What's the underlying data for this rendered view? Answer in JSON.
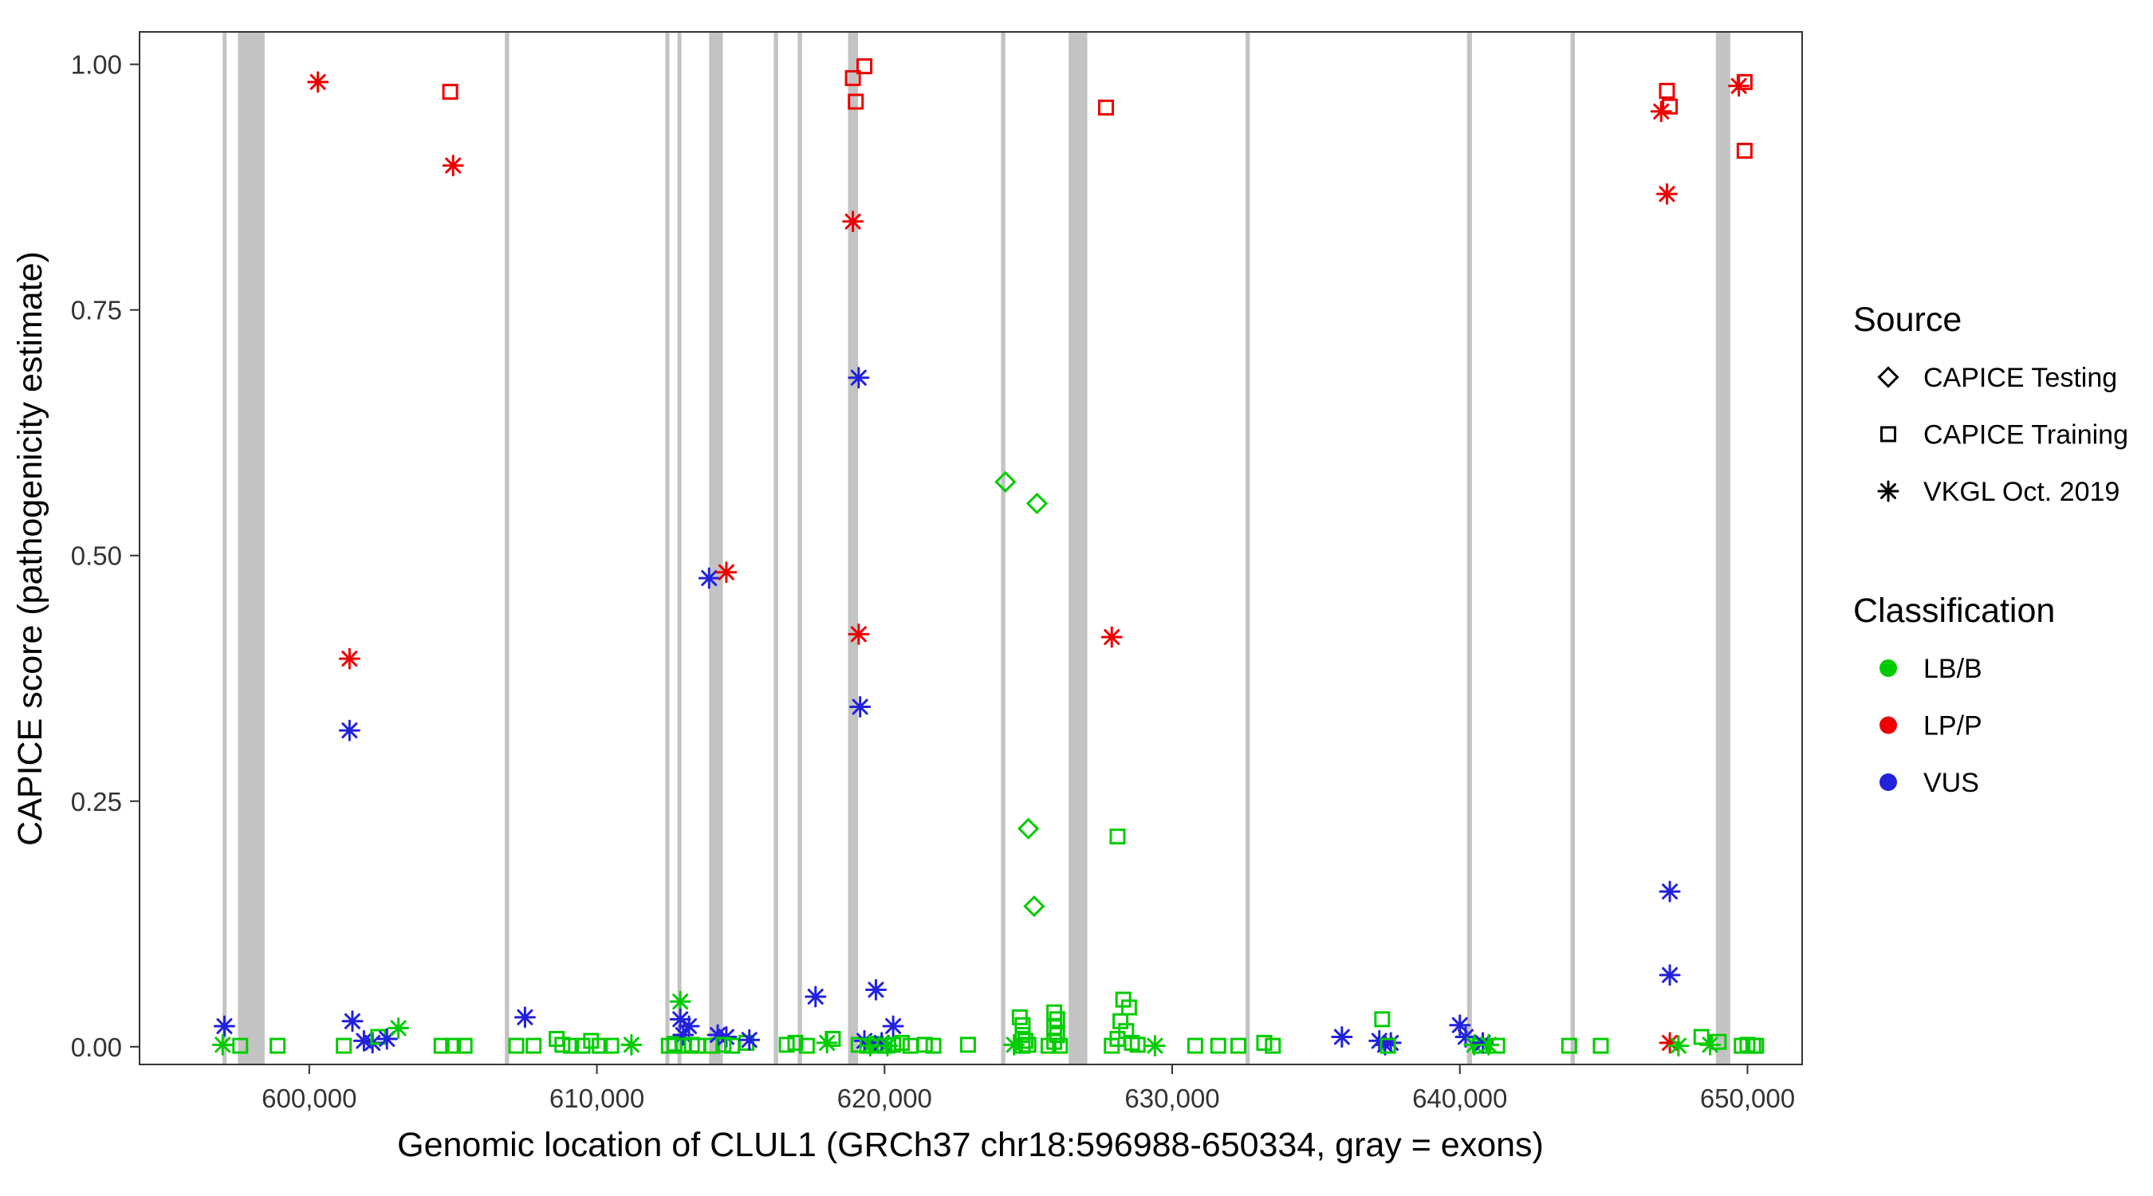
{
  "legend": {
    "source_title": "Source",
    "source_items": [
      {
        "label": "CAPICE Testing",
        "shape": "diamond"
      },
      {
        "label": "CAPICE Training",
        "shape": "square"
      },
      {
        "label": "VKGL Oct. 2019",
        "shape": "asterisk"
      }
    ],
    "classification_title": "Classification",
    "classification_items": [
      {
        "label": "LB/B",
        "color": "#00CC00"
      },
      {
        "label": "LP/P",
        "color": "#EE0000"
      },
      {
        "label": "VUS",
        "color": "#2121DE"
      }
    ]
  },
  "style": {
    "class_colors": {
      "LB/B": "#00CC00",
      "LP/P": "#EE0000",
      "VUS": "#2121DE"
    },
    "exon_color": "#C3C3C3",
    "axis_color": "#333333",
    "legend_shape_color": "#000000",
    "background": "#FFFFFF"
  },
  "chart_data": {
    "type": "scatter",
    "title": "",
    "xlabel": "Genomic location of CLUL1 (GRCh37 chr18:596988-650334, gray = exons)",
    "ylabel": "CAPICE score (pathogenicity estimate)",
    "xlim": [
      594100,
      651900
    ],
    "ylim": [
      -0.018,
      1.033
    ],
    "x_ticks": [
      600000,
      610000,
      620000,
      630000,
      640000,
      650000
    ],
    "x_tick_labels": [
      "600,000",
      "610,000",
      "620,000",
      "630,000",
      "640,000",
      "650,000"
    ],
    "y_ticks": [
      0,
      0.25,
      0.5,
      0.75,
      1
    ],
    "y_tick_labels": [
      "0.00",
      "0.25",
      "0.50",
      "0.75",
      "1.00"
    ],
    "grid": false,
    "legend_position": "right",
    "exons_note": "gray vertical bands = exons, [start,end] genomic coords",
    "exons": [
      [
        596988,
        597100
      ],
      [
        597520,
        598450
      ],
      [
        606800,
        606950
      ],
      [
        612380,
        612520
      ],
      [
        612800,
        612930
      ],
      [
        613900,
        614380
      ],
      [
        616150,
        616300
      ],
      [
        616980,
        617130
      ],
      [
        618730,
        619080
      ],
      [
        624050,
        624200
      ],
      [
        626400,
        627050
      ],
      [
        632550,
        632700
      ],
      [
        640250,
        640420
      ],
      [
        643850,
        644000
      ],
      [
        648900,
        649400
      ]
    ],
    "point_fields": [
      "x",
      "y",
      "classification",
      "source"
    ],
    "points": [
      [
        600300,
        0.982,
        "LP/P",
        "vkgl"
      ],
      [
        604900,
        0.972,
        "LP/P",
        "training"
      ],
      [
        605000,
        0.897,
        "LP/P",
        "vkgl"
      ],
      [
        601400,
        0.395,
        "LP/P",
        "vkgl"
      ],
      [
        601400,
        0.322,
        "VUS",
        "vkgl"
      ],
      [
        613900,
        0.477,
        "VUS",
        "vkgl"
      ],
      [
        614500,
        0.483,
        "LP/P",
        "vkgl"
      ],
      [
        618900,
        0.986,
        "LP/P",
        "training"
      ],
      [
        619300,
        0.998,
        "LP/P",
        "training"
      ],
      [
        619000,
        0.962,
        "LP/P",
        "training"
      ],
      [
        618900,
        0.84,
        "LP/P",
        "vkgl"
      ],
      [
        619100,
        0.681,
        "VUS",
        "vkgl"
      ],
      [
        619100,
        0.42,
        "LP/P",
        "vkgl"
      ],
      [
        619150,
        0.346,
        "VUS",
        "vkgl"
      ],
      [
        624200,
        0.575,
        "LB/B",
        "testing"
      ],
      [
        625300,
        0.553,
        "LB/B",
        "testing"
      ],
      [
        625000,
        0.222,
        "LB/B",
        "testing"
      ],
      [
        625200,
        0.143,
        "LB/B",
        "testing"
      ],
      [
        627700,
        0.956,
        "LP/P",
        "training"
      ],
      [
        627900,
        0.417,
        "LP/P",
        "vkgl"
      ],
      [
        628100,
        0.214,
        "LB/B",
        "training"
      ],
      [
        647200,
        0.973,
        "LP/P",
        "training"
      ],
      [
        647300,
        0.957,
        "LP/P",
        "training"
      ],
      [
        647000,
        0.952,
        "LP/P",
        "vkgl"
      ],
      [
        647200,
        0.868,
        "LP/P",
        "vkgl"
      ],
      [
        647300,
        0.158,
        "VUS",
        "vkgl"
      ],
      [
        647300,
        0.073,
        "VUS",
        "vkgl"
      ],
      [
        649700,
        0.978,
        "LP/P",
        "vkgl"
      ],
      [
        649900,
        0.982,
        "LP/P",
        "training"
      ],
      [
        649900,
        0.912,
        "LP/P",
        "training"
      ],
      [
        597050,
        0.021,
        "VUS",
        "vkgl"
      ],
      [
        596990,
        0.002,
        "LB/B",
        "vkgl"
      ],
      [
        597600,
        0.001,
        "LB/B",
        "training"
      ],
      [
        598900,
        0.001,
        "LB/B",
        "training"
      ],
      [
        601200,
        0.001,
        "LB/B",
        "training"
      ],
      [
        601500,
        0.026,
        "VUS",
        "vkgl"
      ],
      [
        601900,
        0.006,
        "VUS",
        "vkgl"
      ],
      [
        602200,
        0.004,
        "VUS",
        "vkgl"
      ],
      [
        602400,
        0.01,
        "LB/B",
        "training"
      ],
      [
        602700,
        0.008,
        "VUS",
        "vkgl"
      ],
      [
        603100,
        0.019,
        "LB/B",
        "vkgl"
      ],
      [
        604600,
        0.001,
        "LB/B",
        "training"
      ],
      [
        605000,
        0.001,
        "LB/B",
        "training"
      ],
      [
        605400,
        0.001,
        "LB/B",
        "training"
      ],
      [
        607200,
        0.001,
        "LB/B",
        "training"
      ],
      [
        607500,
        0.03,
        "VUS",
        "vkgl"
      ],
      [
        607800,
        0.001,
        "LB/B",
        "training"
      ],
      [
        608600,
        0.008,
        "LB/B",
        "training"
      ],
      [
        608800,
        0.002,
        "LB/B",
        "training"
      ],
      [
        609100,
        0.001,
        "LB/B",
        "training"
      ],
      [
        609500,
        0.001,
        "LB/B",
        "training"
      ],
      [
        609800,
        0.006,
        "LB/B",
        "training"
      ],
      [
        610100,
        0.001,
        "LB/B",
        "training"
      ],
      [
        610500,
        0.001,
        "LB/B",
        "training"
      ],
      [
        611200,
        0.002,
        "LB/B",
        "vkgl"
      ],
      [
        612500,
        0.001,
        "LB/B",
        "training"
      ],
      [
        612700,
        0.003,
        "LB/B",
        "training"
      ],
      [
        612900,
        0.046,
        "LB/B",
        "vkgl"
      ],
      [
        612900,
        0.028,
        "VUS",
        "vkgl"
      ],
      [
        613000,
        0.012,
        "VUS",
        "vkgl"
      ],
      [
        613200,
        0.021,
        "VUS",
        "vkgl"
      ],
      [
        613000,
        0.001,
        "LB/B",
        "training"
      ],
      [
        613300,
        0.002,
        "LB/B",
        "training"
      ],
      [
        613500,
        0.001,
        "LB/B",
        "training"
      ],
      [
        614000,
        0.001,
        "LB/B",
        "training"
      ],
      [
        614200,
        0.012,
        "VUS",
        "vkgl"
      ],
      [
        614500,
        0.01,
        "VUS",
        "vkgl"
      ],
      [
        614400,
        0.002,
        "LB/B",
        "training"
      ],
      [
        614700,
        0.001,
        "LB/B",
        "training"
      ],
      [
        615200,
        0.004,
        "LB/B",
        "training"
      ],
      [
        615300,
        0.007,
        "VUS",
        "vkgl"
      ],
      [
        616600,
        0.002,
        "LB/B",
        "training"
      ],
      [
        616900,
        0.004,
        "LB/B",
        "training"
      ],
      [
        617300,
        0.001,
        "LB/B",
        "training"
      ],
      [
        617600,
        0.051,
        "VUS",
        "vkgl"
      ],
      [
        618000,
        0.004,
        "LB/B",
        "vkgl"
      ],
      [
        618200,
        0.008,
        "LB/B",
        "training"
      ],
      [
        619100,
        0.002,
        "LB/B",
        "training"
      ],
      [
        619300,
        0.006,
        "VUS",
        "vkgl"
      ],
      [
        619400,
        0.001,
        "LB/B",
        "training"
      ],
      [
        619500,
        0.001,
        "LB/B",
        "vkgl"
      ],
      [
        619700,
        0.058,
        "VUS",
        "vkgl"
      ],
      [
        619700,
        0.003,
        "LB/B",
        "training"
      ],
      [
        619900,
        0.004,
        "VUS",
        "vkgl"
      ],
      [
        620000,
        0.001,
        "LB/B",
        "training"
      ],
      [
        620100,
        0.001,
        "LB/B",
        "vkgl"
      ],
      [
        620300,
        0.021,
        "VUS",
        "vkgl"
      ],
      [
        620300,
        0.002,
        "LB/B",
        "training"
      ],
      [
        620600,
        0.004,
        "LB/B",
        "training"
      ],
      [
        620900,
        0.001,
        "LB/B",
        "training"
      ],
      [
        621400,
        0.002,
        "LB/B",
        "training"
      ],
      [
        621700,
        0.001,
        "LB/B",
        "training"
      ],
      [
        622900,
        0.002,
        "LB/B",
        "training"
      ],
      [
        624500,
        0.002,
        "LB/B",
        "vkgl"
      ],
      [
        624700,
        0.03,
        "LB/B",
        "training"
      ],
      [
        624800,
        0.022,
        "LB/B",
        "training"
      ],
      [
        624800,
        0.012,
        "LB/B",
        "training"
      ],
      [
        624900,
        0.006,
        "LB/B",
        "training"
      ],
      [
        624800,
        0.001,
        "LB/B",
        "training"
      ],
      [
        625000,
        0.002,
        "LB/B",
        "training"
      ],
      [
        625700,
        0.001,
        "LB/B",
        "training"
      ],
      [
        625900,
        0.035,
        "LB/B",
        "training"
      ],
      [
        626000,
        0.028,
        "LB/B",
        "training"
      ],
      [
        625900,
        0.02,
        "LB/B",
        "training"
      ],
      [
        626000,
        0.012,
        "LB/B",
        "training"
      ],
      [
        625900,
        0.005,
        "LB/B",
        "training"
      ],
      [
        626100,
        0.001,
        "LB/B",
        "training"
      ],
      [
        627900,
        0.001,
        "LB/B",
        "training"
      ],
      [
        628100,
        0.008,
        "LB/B",
        "training"
      ],
      [
        628200,
        0.026,
        "LB/B",
        "training"
      ],
      [
        628300,
        0.048,
        "LB/B",
        "training"
      ],
      [
        628400,
        0.016,
        "LB/B",
        "training"
      ],
      [
        628500,
        0.04,
        "LB/B",
        "training"
      ],
      [
        628600,
        0.004,
        "LB/B",
        "training"
      ],
      [
        628800,
        0.002,
        "LB/B",
        "training"
      ],
      [
        629400,
        0.001,
        "LB/B",
        "vkgl"
      ],
      [
        630800,
        0.001,
        "LB/B",
        "training"
      ],
      [
        631600,
        0.001,
        "LB/B",
        "training"
      ],
      [
        632300,
        0.001,
        "LB/B",
        "training"
      ],
      [
        633200,
        0.004,
        "LB/B",
        "training"
      ],
      [
        633500,
        0.001,
        "LB/B",
        "training"
      ],
      [
        635900,
        0.01,
        "VUS",
        "vkgl"
      ],
      [
        637200,
        0.006,
        "VUS",
        "vkgl"
      ],
      [
        637400,
        0.002,
        "VUS",
        "vkgl"
      ],
      [
        637600,
        0.004,
        "VUS",
        "vkgl"
      ],
      [
        637300,
        0.028,
        "LB/B",
        "training"
      ],
      [
        637500,
        0.001,
        "LB/B",
        "training"
      ],
      [
        640000,
        0.022,
        "VUS",
        "vkgl"
      ],
      [
        640200,
        0.01,
        "VUS",
        "vkgl"
      ],
      [
        640500,
        0.002,
        "LB/B",
        "vkgl"
      ],
      [
        640700,
        0.001,
        "LB/B",
        "training"
      ],
      [
        640800,
        0.004,
        "VUS",
        "vkgl"
      ],
      [
        641000,
        0.002,
        "LB/B",
        "vkgl"
      ],
      [
        641300,
        0.001,
        "LB/B",
        "training"
      ],
      [
        643800,
        0.001,
        "LB/B",
        "training"
      ],
      [
        644900,
        0.001,
        "LB/B",
        "training"
      ],
      [
        647300,
        0.004,
        "LP/P",
        "vkgl"
      ],
      [
        647600,
        0.001,
        "LB/B",
        "vkgl"
      ],
      [
        648400,
        0.01,
        "LB/B",
        "training"
      ],
      [
        648700,
        0.002,
        "LB/B",
        "vkgl"
      ],
      [
        649000,
        0.005,
        "LB/B",
        "training"
      ],
      [
        649800,
        0.001,
        "LB/B",
        "training"
      ],
      [
        650000,
        0.002,
        "LB/B",
        "training"
      ],
      [
        650200,
        0.001,
        "LB/B",
        "training"
      ],
      [
        650300,
        0.001,
        "LB/B",
        "training"
      ]
    ]
  }
}
